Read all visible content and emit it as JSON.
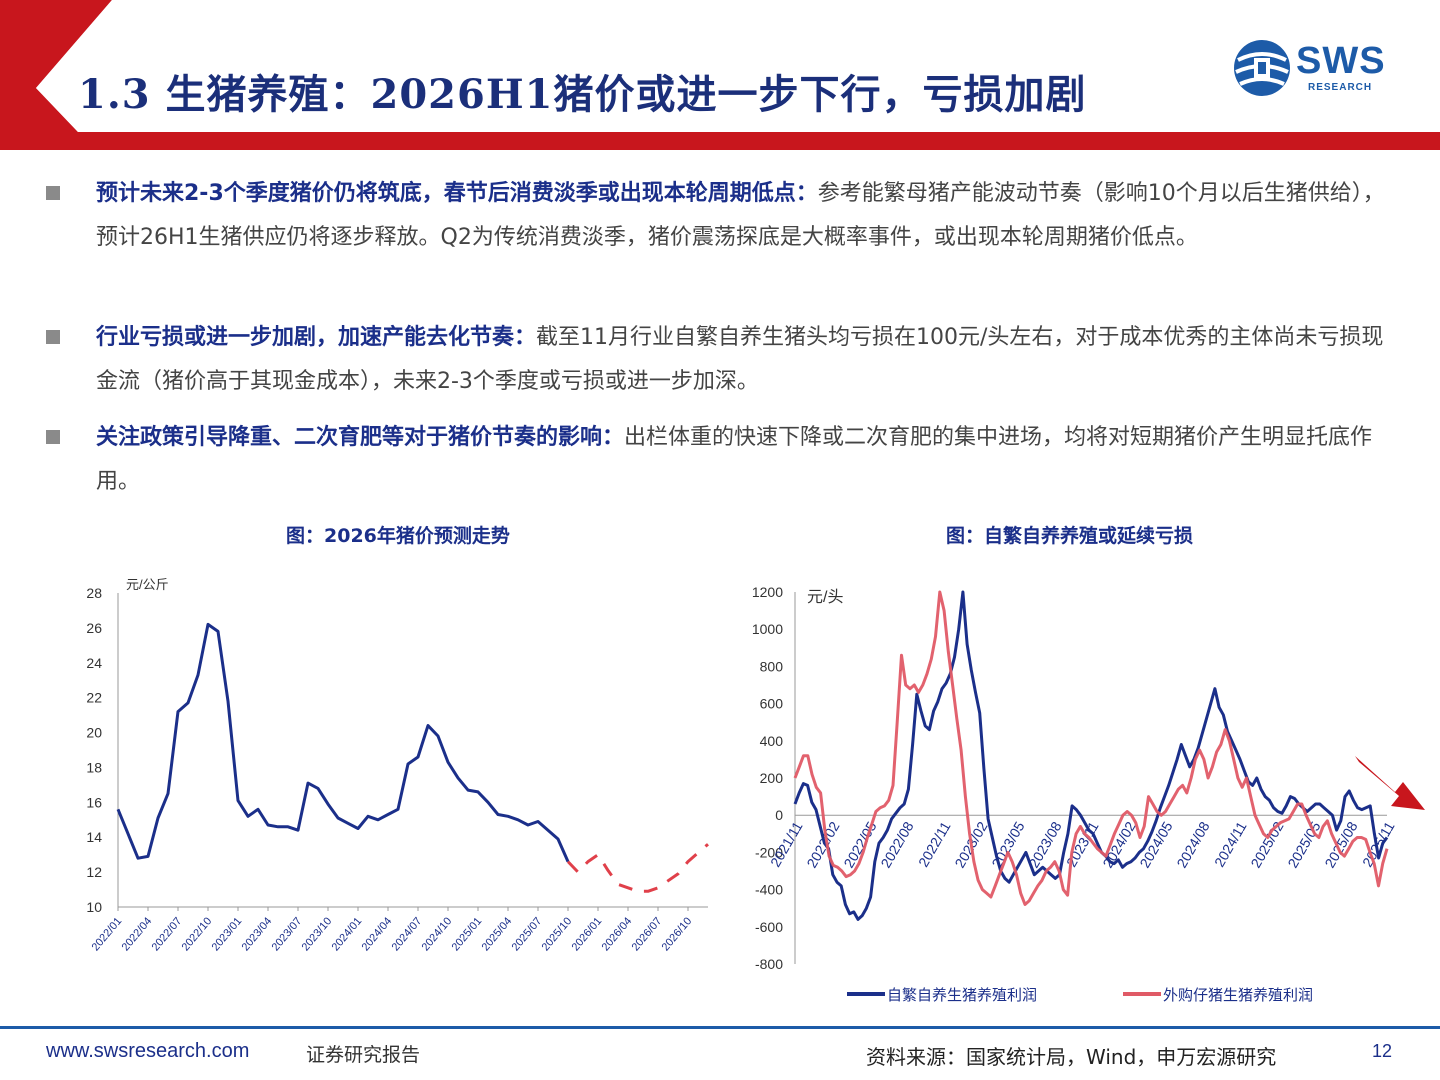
{
  "header": {
    "title": "1.3 生猪养殖：2026H1猪价或进一步下行，亏损加剧",
    "logo_text": "SWS",
    "logo_subtext": "RESEARCH",
    "accent_color": "#c8161d",
    "title_color": "#1b2f7a"
  },
  "bullets": [
    {
      "head": "预计未来2-3个季度猪价仍将筑底，春节后消费淡季或出现本轮周期低点：",
      "body": "参考能繁母猪产能波动节奏（影响10个月以后生猪供给），预计26H1生猪供应仍将逐步释放。Q2为传统消费淡季，猪价震荡探底是大概率事件，或出现本轮周期猪价低点。"
    },
    {
      "head": "行业亏损或进一步加剧，加速产能去化节奏：",
      "body": "截至11月行业自繁自养生猪头均亏损在100元/头左右，对于成本优秀的主体尚未亏损现金流（猪价高于其现金成本），未来2-3个季度或亏损或进一步加深。"
    },
    {
      "head": "关注政策引导降重、二次育肥等对于猪价节奏的影响：",
      "body": "出栏体重的快速下降或二次育肥的集中进场，均将对短期猪价产生明显托底作用。"
    }
  ],
  "chart_data": [
    {
      "type": "line",
      "title": "图：2026年猪价预测走势",
      "ylabel": "元/公斤",
      "ylim": [
        10,
        28
      ],
      "yticks": [
        10,
        12,
        14,
        16,
        18,
        20,
        22,
        24,
        26,
        28
      ],
      "xtick_labels": [
        "2022/01",
        "2022/04",
        "2022/07",
        "2022/10",
        "2023/01",
        "2023/04",
        "2023/07",
        "2023/10",
        "2024/01",
        "2024/04",
        "2024/07",
        "2024/10",
        "2025/01",
        "2025/04",
        "2025/07",
        "2025/10",
        "2026/01",
        "2026/04",
        "2026/07",
        "2026/10"
      ],
      "x_months_start": "2022/01",
      "series": [
        {
          "style": "solid",
          "color": "#1b2f8a",
          "values": [
            15.6,
            14.2,
            12.8,
            12.9,
            15.1,
            16.5,
            21.2,
            21.7,
            23.3,
            26.2,
            25.8,
            21.8,
            16.1,
            15.2,
            15.6,
            14.7,
            14.6,
            14.6,
            14.4,
            17.1,
            16.8,
            15.9,
            15.1,
            14.8,
            14.5,
            15.2,
            15.0,
            15.3,
            15.6,
            18.2,
            18.6,
            20.4,
            19.8,
            18.3,
            17.4,
            16.7,
            16.6,
            16.0,
            15.3,
            15.2,
            15.0,
            14.7,
            14.9,
            14.4,
            13.9,
            12.6
          ]
        },
        {
          "style": "dashed",
          "color": "#e0404a",
          "values": [
            null,
            null,
            null,
            null,
            null,
            null,
            null,
            null,
            null,
            null,
            null,
            null,
            null,
            null,
            null,
            null,
            null,
            null,
            null,
            null,
            null,
            null,
            null,
            null,
            null,
            null,
            null,
            null,
            null,
            null,
            null,
            null,
            null,
            null,
            null,
            null,
            null,
            null,
            null,
            null,
            null,
            null,
            null,
            null,
            null,
            12.6,
            12.0,
            12.6,
            13.0,
            12.1,
            11.3,
            11.1,
            10.9,
            10.9,
            11.1,
            11.5,
            11.9,
            12.6,
            13.1,
            13.6
          ]
        }
      ]
    },
    {
      "type": "line",
      "title": "图：自繁自养养殖或延续亏损",
      "ylabel": "元/头",
      "ylim": [
        -800,
        1200
      ],
      "yticks": [
        -800,
        -600,
        -400,
        -200,
        0,
        200,
        400,
        600,
        800,
        1000,
        1200
      ],
      "xtick_labels": [
        "2021/11",
        "2022/02",
        "2022/05",
        "2022/08",
        "2022/11",
        "2023/02",
        "2023/05",
        "2023/08",
        "2023/11",
        "2024/02",
        "2024/05",
        "2024/08",
        "2024/11",
        "2025/02",
        "2025/05",
        "2025/08",
        "2025/11"
      ],
      "x_weeks_start": "2021/11",
      "series": [
        {
          "name": "自繁自养生猪养殖利润",
          "color": "#1b2f8a",
          "values": [
            60,
            120,
            170,
            160,
            70,
            30,
            -60,
            -150,
            -180,
            -320,
            -360,
            -380,
            -480,
            -530,
            -520,
            -560,
            -540,
            -500,
            -440,
            -250,
            -150,
            -120,
            -80,
            -20,
            10,
            40,
            60,
            140,
            380,
            650,
            560,
            480,
            460,
            560,
            610,
            680,
            710,
            760,
            850,
            1000,
            1200,
            920,
            780,
            660,
            550,
            250,
            -20,
            -120,
            -220,
            -300,
            -340,
            -360,
            -320,
            -280,
            -240,
            -200,
            -260,
            -320,
            -300,
            -280,
            -300,
            -320,
            -340,
            -320,
            -200,
            -100,
            50,
            30,
            0,
            -40,
            -80,
            -100,
            -150,
            -200,
            -220,
            -250,
            -260,
            -240,
            -280,
            -260,
            -250,
            -230,
            -200,
            -180,
            -140,
            -90,
            -30,
            40,
            100,
            160,
            230,
            300,
            380,
            320,
            260,
            300,
            360,
            440,
            520,
            600,
            680,
            580,
            540,
            450,
            400,
            350,
            300,
            240,
            180,
            160,
            200,
            140,
            100,
            80,
            40,
            20,
            10,
            50,
            100,
            90,
            60,
            40,
            20,
            40,
            60,
            60,
            40,
            20,
            0,
            -80,
            -30,
            100,
            130,
            80,
            40,
            30,
            40,
            50,
            -100,
            -230,
            -150,
            -120
          ]
        },
        {
          "name": "外购仔猪生猪养殖利润",
          "color": "#e05a66",
          "values": [
            200,
            260,
            320,
            320,
            220,
            150,
            120,
            -80,
            -220,
            -270,
            -280,
            -300,
            -330,
            -320,
            -300,
            -260,
            -200,
            -120,
            -50,
            20,
            40,
            50,
            80,
            160,
            500,
            860,
            700,
            680,
            700,
            660,
            700,
            760,
            840,
            960,
            1200,
            1100,
            880,
            700,
            520,
            350,
            100,
            -100,
            -250,
            -350,
            -400,
            -420,
            -440,
            -380,
            -320,
            -260,
            -200,
            -250,
            -320,
            -420,
            -480,
            -460,
            -420,
            -380,
            -350,
            -300,
            -280,
            -250,
            -300,
            -400,
            -430,
            -200,
            -100,
            -60,
            -100,
            -120,
            -150,
            -180,
            -200,
            -220,
            -160,
            -100,
            -50,
            0,
            20,
            0,
            -40,
            -120,
            -60,
            100,
            60,
            20,
            0,
            20,
            60,
            100,
            140,
            160,
            120,
            200,
            300,
            350,
            300,
            200,
            260,
            340,
            380,
            460,
            400,
            300,
            200,
            150,
            200,
            100,
            0,
            -50,
            -100,
            -120,
            -80,
            -60,
            -40,
            -30,
            -20,
            20,
            60,
            60,
            0,
            -50,
            -100,
            -120,
            -60,
            -30,
            -100,
            -150,
            -200,
            -220,
            -180,
            -140,
            -120,
            -120,
            -130,
            -200,
            -260,
            -380,
            -260,
            -180
          ]
        }
      ],
      "legend_position": "bottom"
    }
  ],
  "footer": {
    "url": "www.swsresearch.com",
    "label": "证券研究报告",
    "source": "资料来源：国家统计局，Wind，申万宏源研究",
    "page": "12"
  }
}
